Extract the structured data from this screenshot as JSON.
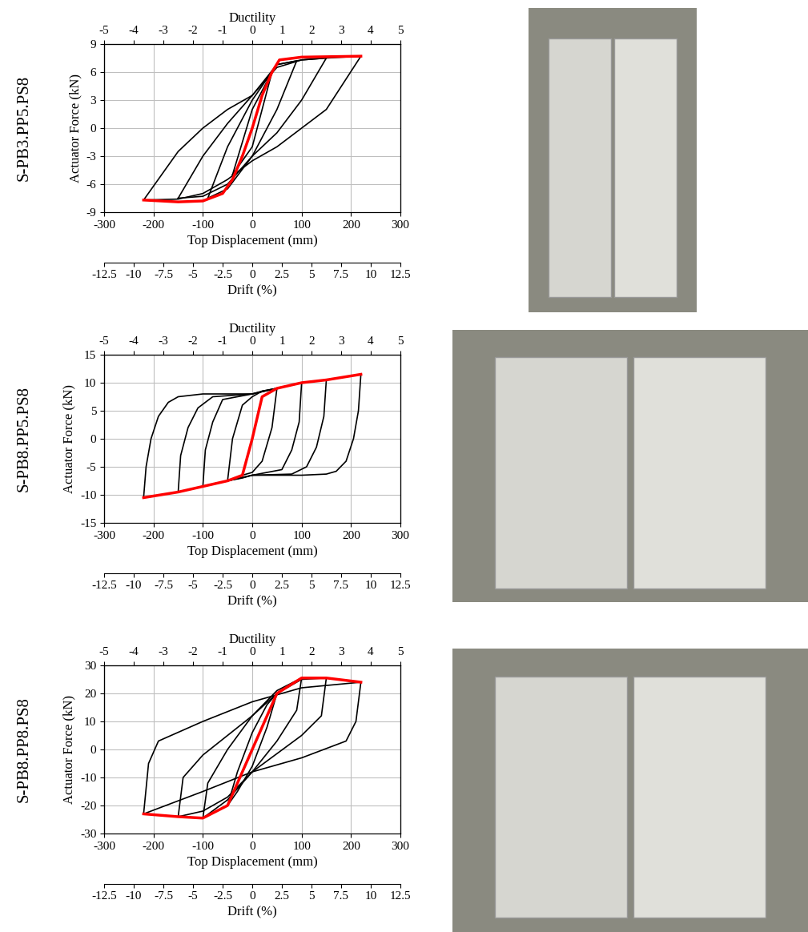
{
  "chart_data": [
    {
      "type": "line",
      "row_label": "S-PB3.PP5.PS8",
      "xlabel": "Top Displacement (mm)",
      "ylabel": "Actuator Force (kN)",
      "xlim": [
        -300,
        300
      ],
      "xticks": [
        -300,
        -200,
        -100,
        0,
        100,
        200,
        300
      ],
      "ylim": [
        -9,
        9
      ],
      "yticks": [
        -9,
        -6,
        -3,
        0,
        3,
        6,
        9
      ],
      "grid": true,
      "top_axis": {
        "label": "Ductility",
        "lim": [
          -5,
          5
        ],
        "ticks": [
          -5,
          -4,
          -3,
          -2,
          -1,
          0,
          1,
          2,
          3,
          4,
          5
        ]
      },
      "bottom_axis2": {
        "label": "Drift (%)",
        "lim": [
          -12.5,
          12.5
        ],
        "ticks": [
          -12.5,
          -10,
          -7.5,
          -5,
          -2.5,
          0,
          2.5,
          5,
          7.5,
          10,
          12.5
        ]
      },
      "series": [
        {
          "color": "#000000",
          "x": [
            -220,
            -150,
            -100,
            -50,
            0,
            50,
            100,
            150,
            220,
            150,
            100,
            50,
            0,
            -50,
            -100,
            -150,
            -220
          ],
          "values": [
            -7.7,
            -2.5,
            0,
            2,
            3.5,
            6.5,
            7.3,
            7.5,
            7.7,
            2,
            0,
            -2,
            -3.5,
            -5.5,
            -7,
            -7.6,
            -7.7
          ]
        },
        {
          "color": "#000000",
          "x": [
            -150,
            -100,
            -50,
            0,
            50,
            100,
            150,
            100,
            50,
            0,
            -50,
            -100,
            -150
          ],
          "values": [
            -7.5,
            -3,
            0.5,
            3.5,
            6.8,
            7.3,
            7.5,
            3,
            -0.5,
            -3,
            -6,
            -7.3,
            -7.5
          ]
        },
        {
          "color": "#000000",
          "x": [
            -90,
            -50,
            0,
            50,
            90,
            50,
            0,
            -50,
            -90
          ],
          "values": [
            -7.5,
            -2,
            3,
            6.8,
            7.2,
            2,
            -3,
            -6.5,
            -7.5
          ]
        },
        {
          "color": "#000000",
          "x": [
            -40,
            0,
            40,
            0,
            -40
          ],
          "values": [
            -5,
            2,
            6,
            -2,
            -5
          ]
        },
        {
          "color": "#ff0000",
          "x": [
            -220,
            -150,
            -100,
            -60,
            -40,
            -20,
            0,
            20,
            40,
            55,
            100,
            220
          ],
          "values": [
            -7.7,
            -7.9,
            -7.8,
            -7,
            -5.5,
            -3,
            0,
            3.5,
            6,
            7.3,
            7.6,
            7.7
          ]
        }
      ]
    },
    {
      "type": "line",
      "row_label": "S-PB8.PP5.PS8",
      "xlabel": "Top Displacement (mm)",
      "ylabel": "Actuator Force (kN)",
      "xlim": [
        -300,
        300
      ],
      "xticks": [
        -300,
        -200,
        -100,
        0,
        100,
        200,
        300
      ],
      "ylim": [
        -15,
        15
      ],
      "yticks": [
        -15,
        -10,
        -5,
        0,
        5,
        10,
        15
      ],
      "grid": true,
      "top_axis": {
        "label": "Ductility",
        "lim": [
          -5,
          5
        ],
        "ticks": [
          -5,
          -4,
          -3,
          -2,
          -1,
          0,
          1,
          2,
          3,
          4,
          5
        ]
      },
      "bottom_axis2": {
        "label": "Drift (%)",
        "lim": [
          -12.5,
          12.5
        ],
        "ticks": [
          -12.5,
          -10,
          -7.5,
          -5,
          -2.5,
          0,
          2.5,
          5,
          7.5,
          10,
          12.5
        ]
      },
      "series": [
        {
          "color": "#000000",
          "x": [
            -220,
            -215,
            -205,
            -190,
            -170,
            -150,
            -100,
            0,
            20,
            50,
            100,
            150,
            220,
            215,
            205,
            190,
            170,
            150,
            100,
            0,
            -20,
            -50,
            -100,
            -150,
            -220
          ],
          "values": [
            -10.5,
            -5,
            0,
            4,
            6.5,
            7.5,
            8,
            8,
            8.5,
            9,
            10,
            10.5,
            11.5,
            5,
            0,
            -4,
            -5.8,
            -6.3,
            -6.5,
            -6.5,
            -7,
            -7.5,
            -8.5,
            -9.5,
            -10.5
          ]
        },
        {
          "color": "#000000",
          "x": [
            -150,
            -145,
            -130,
            -110,
            -80,
            0,
            50,
            100,
            150,
            145,
            130,
            110,
            80,
            0,
            -50,
            -100,
            -150
          ],
          "values": [
            -9.5,
            -3,
            2,
            5.5,
            7.5,
            8,
            9,
            10,
            10.5,
            4,
            -1.5,
            -5,
            -6.3,
            -6.5,
            -7.5,
            -8.5,
            -9.5
          ]
        },
        {
          "color": "#000000",
          "x": [
            -100,
            -95,
            -80,
            -60,
            0,
            50,
            100,
            95,
            80,
            60,
            0,
            -50,
            -100
          ],
          "values": [
            -8.5,
            -2,
            3,
            7,
            8,
            9,
            10,
            3,
            -2,
            -5.5,
            -6.5,
            -7.5,
            -8.5
          ]
        },
        {
          "color": "#000000",
          "x": [
            -50,
            -40,
            -20,
            0,
            20,
            50,
            40,
            20,
            0,
            -20,
            -50
          ],
          "values": [
            -7.5,
            0,
            6,
            7.5,
            8.5,
            9,
            2,
            -4,
            -6,
            -6.5,
            -7.5
          ]
        },
        {
          "color": "#ff0000",
          "x": [
            -220,
            -150,
            -100,
            -50,
            -20,
            0,
            20,
            50,
            100,
            150,
            220
          ],
          "values": [
            -10.5,
            -9.5,
            -8.5,
            -7.5,
            -6.5,
            0,
            7.5,
            9,
            10,
            10.5,
            11.5
          ]
        }
      ]
    },
    {
      "type": "line",
      "row_label": "S-PB8.PP8.PS8",
      "xlabel": "Top Displacement (mm)",
      "ylabel": "Actuator Force (kN)",
      "xlim": [
        -300,
        300
      ],
      "xticks": [
        -300,
        -200,
        -100,
        0,
        100,
        200,
        300
      ],
      "ylim": [
        -30,
        30
      ],
      "yticks": [
        -30,
        -20,
        -10,
        0,
        10,
        20,
        30
      ],
      "grid": true,
      "top_axis": {
        "label": "Ductility",
        "lim": [
          -5,
          5
        ],
        "ticks": [
          -5,
          -4,
          -3,
          -2,
          -1,
          0,
          1,
          2,
          3,
          4,
          5
        ]
      },
      "bottom_axis2": {
        "label": "Drift (%)",
        "lim": [
          -12.5,
          12.5
        ],
        "ticks": [
          -12.5,
          -10,
          -7.5,
          -5,
          -2.5,
          0,
          2.5,
          5,
          7.5,
          10,
          12.5
        ]
      },
      "series": [
        {
          "color": "#000000",
          "x": [
            -220,
            -210,
            -190,
            -100,
            0,
            100,
            220,
            210,
            190,
            100,
            0,
            -100,
            -220
          ],
          "values": [
            -23,
            -5,
            3,
            10,
            17,
            22,
            24,
            10,
            3,
            -3,
            -8,
            -15,
            -23
          ]
        },
        {
          "color": "#000000",
          "x": [
            -150,
            -140,
            -100,
            0,
            50,
            100,
            150,
            140,
            100,
            0,
            -50,
            -100,
            -150
          ],
          "values": [
            -24,
            -10,
            -2,
            12,
            20,
            25,
            25.5,
            12,
            5,
            -8,
            -17,
            -22,
            -24
          ]
        },
        {
          "color": "#000000",
          "x": [
            -100,
            -90,
            -50,
            0,
            50,
            100,
            90,
            50,
            0,
            -50,
            -100
          ],
          "values": [
            -24.5,
            -12,
            0,
            12,
            21,
            25.5,
            14,
            3,
            -8,
            -18,
            -24.5
          ]
        },
        {
          "color": "#000000",
          "x": [
            -50,
            -30,
            0,
            30,
            50,
            30,
            0,
            -30,
            -50
          ],
          "values": [
            -20,
            -8,
            6,
            16,
            20,
            8,
            -6,
            -15,
            -20
          ]
        },
        {
          "color": "#ff0000",
          "x": [
            -220,
            -150,
            -100,
            -50,
            -25,
            0,
            25,
            50,
            100,
            150,
            220
          ],
          "values": [
            -23,
            -24,
            -24.5,
            -20,
            -10,
            0,
            10,
            20,
            25.5,
            25.5,
            24
          ]
        }
      ]
    }
  ]
}
